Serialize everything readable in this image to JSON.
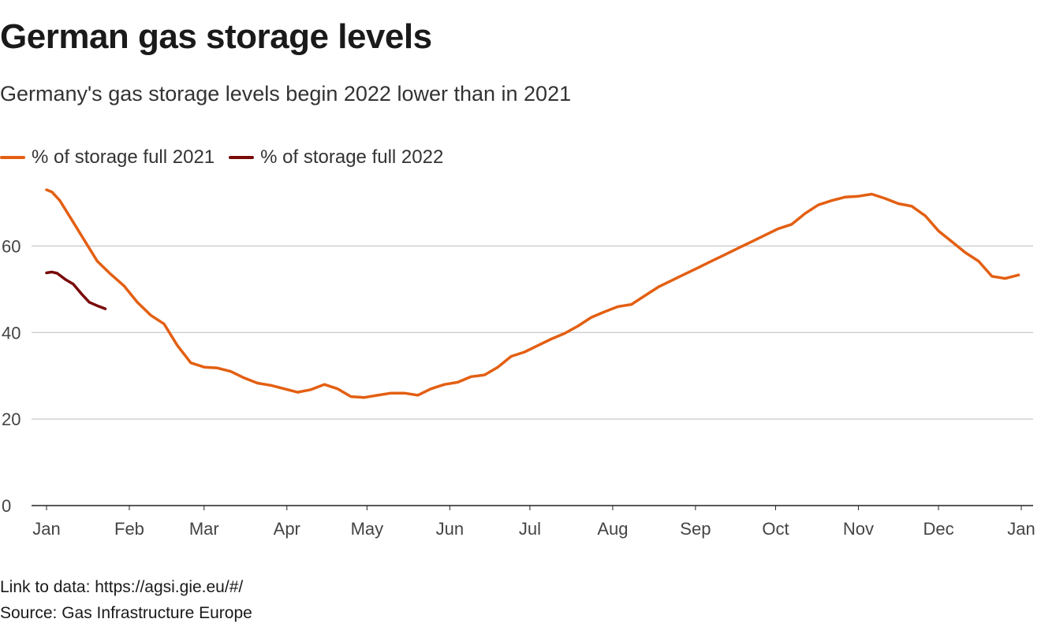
{
  "header": {
    "title": "German gas storage levels",
    "subtitle": "Germany's gas storage levels begin 2022 lower than in 2021"
  },
  "footer": {
    "link": "Link to data: https://agsi.gie.eu/#/",
    "source": "Source: Gas Infrastructure Europe"
  },
  "colors": {
    "series_2021": "#e35f12",
    "series_2022": "#7a0a0a",
    "grid": "#c8c8c8",
    "axis": "#222222",
    "tick_text": "#444444"
  },
  "chart_data": {
    "type": "line",
    "title": "German gas storage levels",
    "subtitle": "Germany's gas storage levels begin 2022 lower than in 2021",
    "xlabel": "",
    "ylabel": "",
    "ylim": [
      0,
      75
    ],
    "yticks": [
      0,
      20,
      40,
      60
    ],
    "grid": true,
    "legend_position": "top-left",
    "x_ticks": [
      "Jan",
      "Feb",
      "Mar",
      "Apr",
      "May",
      "Jun",
      "Jul",
      "Aug",
      "Sep",
      "Oct",
      "Nov",
      "Dec",
      "Jan"
    ],
    "x_unit": "day of year",
    "series": [
      {
        "name": "% of storage full 2021",
        "x": [
          1,
          3,
          6,
          10,
          15,
          20,
          25,
          30,
          35,
          40,
          45,
          50,
          55,
          60,
          65,
          70,
          75,
          80,
          85,
          90,
          95,
          100,
          105,
          110,
          115,
          120,
          125,
          130,
          135,
          140,
          145,
          150,
          155,
          160,
          165,
          170,
          175,
          180,
          185,
          190,
          195,
          200,
          205,
          210,
          215,
          220,
          225,
          230,
          235,
          240,
          245,
          250,
          255,
          260,
          265,
          270,
          275,
          280,
          285,
          290,
          295,
          300,
          305,
          310,
          315,
          320,
          325,
          330,
          335,
          340,
          345,
          350,
          355,
          360,
          365
        ],
        "values": [
          73.0,
          72.5,
          70.5,
          66.5,
          61.5,
          56.5,
          53.5,
          50.8,
          47.0,
          44.0,
          42.0,
          37.0,
          33.0,
          32.0,
          31.8,
          31.0,
          29.5,
          28.3,
          27.8,
          27.0,
          26.2,
          26.8,
          28.0,
          27.0,
          25.2,
          25.0,
          25.5,
          26.0,
          26.0,
          25.5,
          27.0,
          28.0,
          28.5,
          29.8,
          30.2,
          32.0,
          34.5,
          35.5,
          37.0,
          38.5,
          39.8,
          41.5,
          43.5,
          44.8,
          46.0,
          46.5,
          48.5,
          50.5,
          52.0,
          53.5,
          55.0,
          56.5,
          58.0,
          59.5,
          61.0,
          62.5,
          64.0,
          65.0,
          67.5,
          69.5,
          70.5,
          71.3,
          71.5,
          72.0,
          71.0,
          69.8,
          69.2,
          67.0,
          63.5,
          61.0,
          58.5,
          56.5,
          53.0,
          52.5,
          53.3
        ]
      },
      {
        "name": "% of storage full 2022",
        "x": [
          1,
          3,
          5,
          8,
          11,
          14,
          17,
          20,
          23
        ],
        "values": [
          53.8,
          54.0,
          53.7,
          52.3,
          51.2,
          49.0,
          47.0,
          46.2,
          45.5
        ]
      }
    ]
  }
}
